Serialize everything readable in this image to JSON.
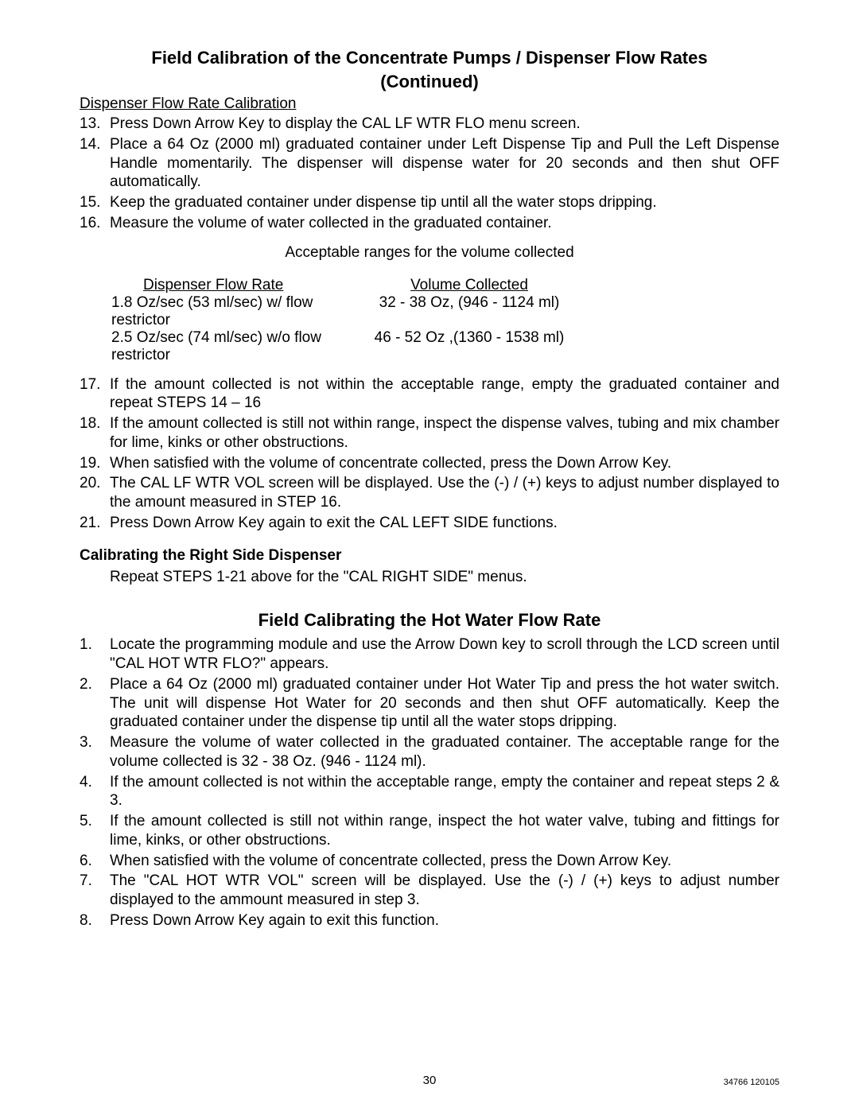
{
  "title_line1": "Field Calibration of the Concentrate Pumps / Dispenser Flow Rates",
  "title_line2": "(Continued)",
  "subheading1": "Dispenser Flow Rate Calibration",
  "list1": [
    {
      "n": "13.",
      "t": "Press Down Arrow Key to display the CAL LF WTR FLO menu screen."
    },
    {
      "n": "14.",
      "t": "Place a 64 Oz (2000 ml) graduated container under Left Dispense Tip and Pull the Left Dispense Handle momentarily. The dispenser will dispense water for 20 seconds and then shut OFF automatically."
    },
    {
      "n": "15.",
      "t": "Keep the graduated container under dispense tip until all the water stops dripping."
    },
    {
      "n": "16.",
      "t": "Measure the volume of water collected in the graduated container."
    }
  ],
  "table_caption": "Acceptable ranges for the volume collected",
  "table": {
    "hdr1": "Dispenser Flow Rate",
    "hdr2": "Volume Collected",
    "rows": [
      {
        "c1": "1.8 Oz/sec (53 ml/sec) w/ flow restrictor",
        "c2": "32 - 38 Oz, (946 - 1124 ml)"
      },
      {
        "c1": "2.5 Oz/sec (74 ml/sec) w/o flow restrictor",
        "c2": "46 - 52 Oz ,(1360 - 1538 ml)"
      }
    ]
  },
  "list2": [
    {
      "n": "17.",
      "t": "If the amount collected is not within the acceptable range, empty the graduated container and repeat STEPS 14 – 16"
    },
    {
      "n": "18.",
      "t": "If the amount collected is still not within range, inspect the dispense valves, tubing and mix chamber for lime, kinks or other obstructions."
    },
    {
      "n": "19.",
      "t": "When satisfied with the volume of concentrate collected, press the Down Arrow Key."
    },
    {
      "n": "20.",
      "t": "The CAL LF WTR VOL screen will be displayed. Use the (-) / (+) keys to adjust number displayed to the amount measured in STEP 16."
    },
    {
      "n": "21.",
      "t": "Press Down Arrow Key again to exit the CAL LEFT SIDE functions."
    }
  ],
  "right_side_heading": "Calibrating the Right Side Dispenser",
  "right_side_text": "Repeat STEPS 1-21 above  for the \"CAL RIGHT SIDE\" menus.",
  "section2_title": "Field Calibrating the Hot Water Flow Rate",
  "list3": [
    {
      "n": "1.",
      "t": "Locate the programming module and use the Arrow Down key to scroll through the LCD screen until \"CAL HOT WTR FLO?\" appears."
    },
    {
      "n": "2.",
      "t": "Place a 64 Oz (2000 ml) graduated container under Hot Water Tip and press the hot water switch. The unit will dispense Hot Water for 20 seconds and then shut OFF automatically. Keep the graduated container under the dispense tip until all the water stops dripping."
    },
    {
      "n": "3.",
      "t": "Measure the volume of water collected in the graduated container. The acceptable range for the volume collected is 32 - 38 Oz. (946 - 1124 ml)."
    },
    {
      "n": "4.",
      "t": "If the amount collected is not within the acceptable range, empty the container and repeat steps 2 & 3."
    },
    {
      "n": "5.",
      "t": "If the amount collected is still not within range, inspect the hot water valve, tubing and fittings for lime, kinks, or other obstructions."
    },
    {
      "n": "6.",
      "t": "When satisfied with the volume of concentrate collected, press the Down Arrow Key."
    },
    {
      "n": "7.",
      "t": "The \"CAL HOT WTR VOL\" screen will be displayed. Use the (-) / (+) keys to adjust number displayed to the ammount measured in step 3."
    },
    {
      "n": "8.",
      "t": "Press Down Arrow Key again to exit this function."
    }
  ],
  "page_number": "30",
  "doc_id": "34766 120105"
}
